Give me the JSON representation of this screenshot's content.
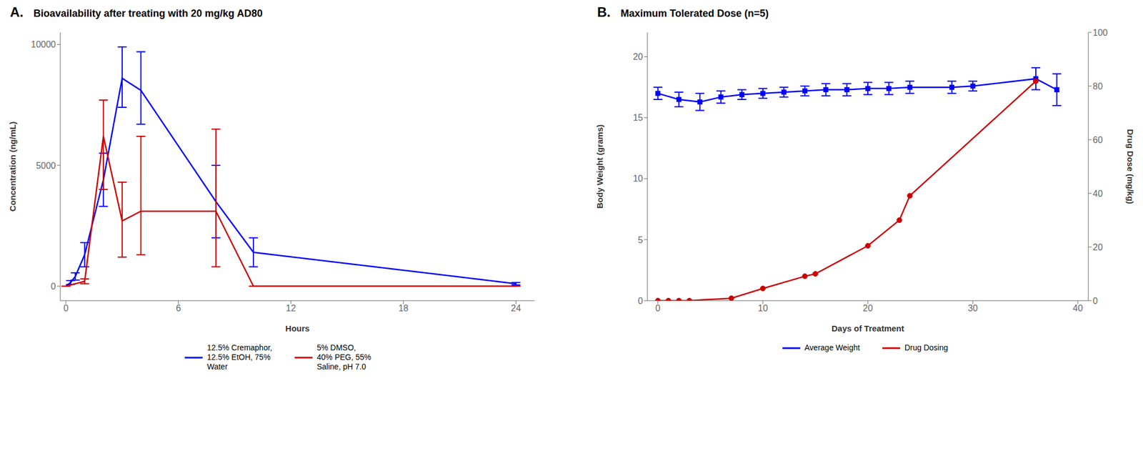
{
  "chart_data": [
    {
      "type": "line",
      "title": "Bioavailability after treating with 20 mg/kg AD80",
      "annotations": [
        "A."
      ],
      "xlabel": "Hours",
      "ylabel": "Concentration (ng/mL)",
      "xlim": [
        -0.3,
        25
      ],
      "xticks": [
        0,
        6,
        12,
        18,
        24
      ],
      "ylim": [
        -600,
        10500
      ],
      "yticks": [
        0,
        5000,
        10000
      ],
      "grid": false,
      "legend": "bottom",
      "series": [
        {
          "name": "12.5% Cremaphor,\n12.5% EtOH, 75%\nWater",
          "color": "#0000FF",
          "marker": "none",
          "x": [
            0,
            0.25,
            0.5,
            1,
            2,
            3,
            4,
            8,
            10,
            24
          ],
          "values": [
            0,
            150,
            400,
            1300,
            4400,
            8600,
            8100,
            3500,
            1400,
            100
          ],
          "error_low": [
            0,
            80,
            150,
            500,
            1100,
            1200,
            1400,
            1500,
            600,
            50
          ],
          "error_high": [
            0,
            80,
            150,
            500,
            1100,
            1300,
            1600,
            1500,
            600,
            50
          ]
        },
        {
          "name": "5% DMSO,\n40% PEG, 55%\nSaline, pH 7.0",
          "color": "#CC0000",
          "marker": "none",
          "x": [
            0,
            1,
            2,
            3,
            4,
            8,
            10,
            24
          ],
          "values": [
            0,
            200,
            6200,
            2700,
            3100,
            3100,
            0,
            0
          ],
          "error_low": [
            0,
            100,
            2200,
            1500,
            1800,
            2300,
            0,
            0
          ],
          "error_high": [
            0,
            100,
            1500,
            1600,
            3100,
            3400,
            0,
            0
          ]
        }
      ]
    },
    {
      "type": "line",
      "title": "Maximum Tolerated Dose (n=5)",
      "annotations": [
        "B."
      ],
      "xlabel": "Days of Treatment",
      "ylabel": "Body Weight (grams)",
      "y2label": "Drug Dose (mg/kg)",
      "xlim": [
        -1,
        41
      ],
      "xticks": [
        0,
        10,
        20,
        30,
        40
      ],
      "ylim": [
        0,
        22
      ],
      "yticks": [
        0,
        5,
        10,
        15,
        20
      ],
      "y2lim": [
        0,
        100
      ],
      "y2ticks": [
        0,
        20,
        40,
        60,
        80,
        100
      ],
      "grid": false,
      "legend": "bottom",
      "series": [
        {
          "name": "Average Weight",
          "color": "#0000FF",
          "marker": "square",
          "x": [
            0,
            2,
            4,
            6,
            8,
            10,
            12,
            14,
            16,
            18,
            20,
            22,
            24,
            28,
            30,
            36,
            38
          ],
          "values": [
            17.0,
            16.5,
            16.3,
            16.7,
            16.9,
            17.0,
            17.1,
            17.2,
            17.3,
            17.3,
            17.4,
            17.4,
            17.5,
            17.5,
            17.6,
            18.2,
            17.3
          ],
          "error": [
            0.5,
            0.6,
            0.7,
            0.5,
            0.4,
            0.4,
            0.4,
            0.4,
            0.5,
            0.5,
            0.5,
            0.5,
            0.5,
            0.5,
            0.4,
            0.9,
            1.3
          ]
        },
        {
          "name": "Drug Dosing",
          "color": "#CC0000",
          "marker": "circle",
          "axis": "y2",
          "x": [
            0,
            1,
            2,
            3,
            7,
            10,
            14,
            15,
            20,
            23,
            24,
            36
          ],
          "values": [
            0,
            0,
            0,
            0,
            0.9090909090909091,
            4.545454545454546,
            9.090909090909092,
            10,
            20.454545454545453,
            30,
            39.09090909090909,
            81.81818181818181
          ]
        }
      ]
    }
  ]
}
